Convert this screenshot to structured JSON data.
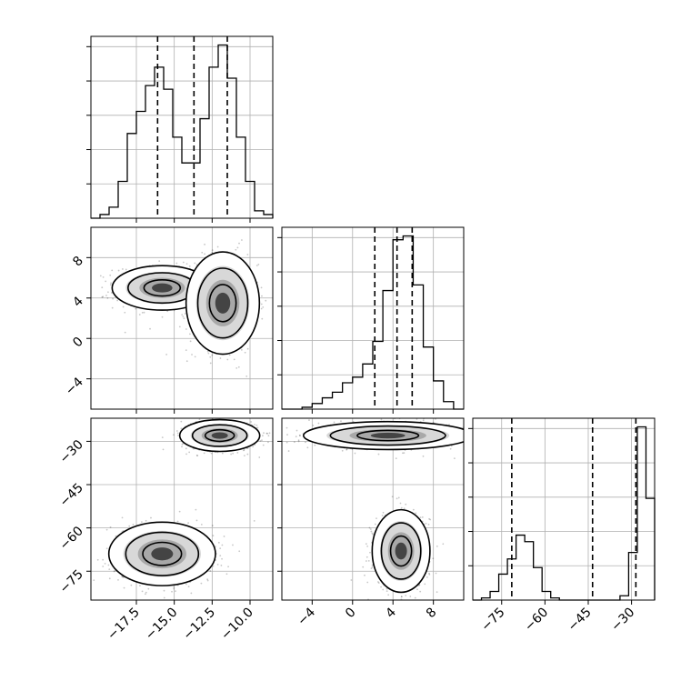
{
  "chart_data": {
    "type": "corner",
    "grid": true,
    "series_color": "#000000",
    "panels": {
      "hist_p0": {
        "type": "histogram",
        "xlim": [
          -20.5,
          -8.5
        ],
        "bin_edges": [
          -20.5,
          -19.9,
          -19.3,
          -18.7,
          -18.1,
          -17.5,
          -16.9,
          -16.3,
          -15.7,
          -15.1,
          -14.5,
          -13.9,
          -13.3,
          -12.7,
          -12.1,
          -11.5,
          -10.9,
          -10.3,
          -9.7,
          -9.1,
          -8.5
        ],
        "counts": [
          0,
          1,
          3,
          10,
          23,
          29,
          36,
          41,
          35,
          22,
          15,
          15,
          27,
          41,
          47,
          38,
          22,
          10,
          2,
          1
        ],
        "quantiles": [
          -16.1,
          -13.7,
          -11.5
        ]
      },
      "hist_p1": {
        "type": "histogram",
        "xlim": [
          -7,
          11
        ],
        "bin_edges": [
          -7,
          -6,
          -5,
          -4,
          -3,
          -2,
          -1,
          0,
          1,
          2,
          3,
          4,
          5,
          6,
          7,
          8,
          9,
          10,
          11
        ],
        "counts": [
          0,
          0,
          0.1,
          0.3,
          0.6,
          0.9,
          1.4,
          1.7,
          2.4,
          3.6,
          6.3,
          9,
          9.2,
          6.6,
          3.3,
          1.5,
          0.4,
          0
        ],
        "quantiles": [
          2.2,
          4.4,
          5.9
        ]
      },
      "hist_p2": {
        "type": "histogram",
        "xlim": [
          -85,
          -22
        ],
        "bin_edges": [
          -85,
          -82,
          -79,
          -76,
          -73,
          -70,
          -67,
          -64,
          -61,
          -58,
          -55,
          -52,
          -49,
          -46,
          -43,
          -40,
          -37,
          -34,
          -31,
          -28,
          -25,
          -22
        ],
        "counts": [
          0,
          1,
          4,
          12,
          19,
          30,
          27,
          15,
          4,
          1,
          0,
          0,
          0,
          0,
          0,
          0,
          0,
          2,
          22,
          80,
          47
        ],
        "quantiles": [
          -71.5,
          -43.5,
          -28.5
        ]
      },
      "scatter_p0_p1": {
        "type": "2d-density",
        "xlim": [
          -20.5,
          -8.5
        ],
        "ylim": [
          -7,
          11
        ],
        "modes": [
          {
            "center": [
              -15.8,
              5.0
            ],
            "spread": [
              1.5,
              1.0
            ]
          },
          {
            "center": [
              -11.8,
              3.5
            ],
            "spread": [
              1.1,
              2.3
            ]
          }
        ]
      },
      "scatter_p0_p2": {
        "type": "2d-density",
        "xlim": [
          -20.5,
          -8.5
        ],
        "ylim": [
          -85,
          -22
        ],
        "modes": [
          {
            "center": [
              -12,
              -28
            ],
            "spread": [
              1.2,
              2.5
            ]
          },
          {
            "center": [
              -15.8,
              -69
            ],
            "spread": [
              1.6,
              5
            ]
          }
        ]
      },
      "scatter_p1_p2": {
        "type": "2d-density",
        "xlim": [
          -7,
          11
        ],
        "ylim": [
          -85,
          -22
        ],
        "modes": [
          {
            "center": [
              3.5,
              -28
            ],
            "spread": [
              3.8,
              2.2
            ]
          },
          {
            "center": [
              4.8,
              -68
            ],
            "spread": [
              1.3,
              6.5
            ]
          }
        ]
      }
    },
    "ticks": {
      "p0": {
        "values": [
          -17.5,
          -15.0,
          -12.5,
          -10.0
        ],
        "labels": [
          "−17.5",
          "−15.0",
          "−12.5",
          "−10.0"
        ]
      },
      "p1_x": {
        "values": [
          -4,
          0,
          4,
          8
        ],
        "labels": [
          "−4",
          "0",
          "4",
          "8"
        ]
      },
      "p1_y": {
        "values": [
          8,
          4,
          0,
          -4
        ],
        "labels": [
          "8",
          "4",
          "0",
          "−4"
        ]
      },
      "p2_x": {
        "values": [
          -75,
          -60,
          -45,
          -30
        ],
        "labels": [
          "−75",
          "−60",
          "−45",
          "−30"
        ]
      },
      "p2_y": {
        "values": [
          -30,
          -45,
          -60,
          -75
        ],
        "labels": [
          "−30",
          "−45",
          "−60",
          "−75"
        ]
      }
    }
  }
}
